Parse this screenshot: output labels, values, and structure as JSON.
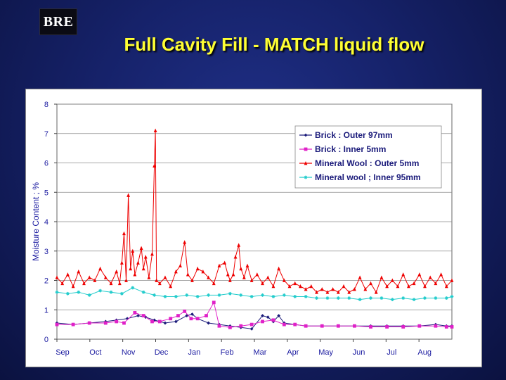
{
  "logo": {
    "text": "BRE"
  },
  "slide_title": "Full Cavity Fill - MATCH liquid flow",
  "chart_data": {
    "type": "line",
    "title": "",
    "xlabel": "",
    "ylabel": "Moisture Content ; %",
    "ylim": [
      0,
      8
    ],
    "yticks": [
      0,
      1,
      2,
      3,
      4,
      5,
      6,
      7,
      8
    ],
    "months": [
      "Sep",
      "Oct",
      "Nov",
      "Dec",
      "Jan",
      "Feb",
      "Mar",
      "Apr",
      "May",
      "Jun",
      "Jul",
      "Aug"
    ],
    "x_range_days": [
      0,
      365
    ],
    "grid": {
      "horizontal": true,
      "vertical": false
    },
    "legend": {
      "position": "top-right"
    },
    "series": [
      {
        "name": "Brick : Outer 97mm",
        "color": "#1a1a7a",
        "marker": "diamond",
        "points": [
          [
            0,
            0.55
          ],
          [
            15,
            0.5
          ],
          [
            30,
            0.55
          ],
          [
            45,
            0.6
          ],
          [
            55,
            0.65
          ],
          [
            65,
            0.7
          ],
          [
            75,
            0.8
          ],
          [
            82,
            0.75
          ],
          [
            90,
            0.65
          ],
          [
            100,
            0.55
          ],
          [
            110,
            0.6
          ],
          [
            120,
            0.8
          ],
          [
            125,
            0.85
          ],
          [
            130,
            0.7
          ],
          [
            140,
            0.55
          ],
          [
            150,
            0.5
          ],
          [
            160,
            0.45
          ],
          [
            170,
            0.4
          ],
          [
            180,
            0.35
          ],
          [
            190,
            0.8
          ],
          [
            195,
            0.75
          ],
          [
            200,
            0.6
          ],
          [
            205,
            0.8
          ],
          [
            210,
            0.55
          ],
          [
            220,
            0.5
          ],
          [
            230,
            0.45
          ],
          [
            245,
            0.45
          ],
          [
            260,
            0.45
          ],
          [
            275,
            0.45
          ],
          [
            290,
            0.45
          ],
          [
            305,
            0.45
          ],
          [
            320,
            0.45
          ],
          [
            335,
            0.45
          ],
          [
            350,
            0.5
          ],
          [
            360,
            0.45
          ],
          [
            365,
            0.45
          ]
        ]
      },
      {
        "name": "Brick : Inner 5mm",
        "color": "#e020c8",
        "marker": "square",
        "points": [
          [
            0,
            0.5
          ],
          [
            15,
            0.5
          ],
          [
            30,
            0.55
          ],
          [
            45,
            0.55
          ],
          [
            55,
            0.6
          ],
          [
            62,
            0.55
          ],
          [
            72,
            0.9
          ],
          [
            80,
            0.8
          ],
          [
            88,
            0.6
          ],
          [
            95,
            0.6
          ],
          [
            105,
            0.7
          ],
          [
            112,
            0.8
          ],
          [
            118,
            0.95
          ],
          [
            124,
            0.7
          ],
          [
            130,
            0.7
          ],
          [
            138,
            0.8
          ],
          [
            145,
            1.25
          ],
          [
            150,
            0.45
          ],
          [
            160,
            0.4
          ],
          [
            170,
            0.45
          ],
          [
            180,
            0.5
          ],
          [
            190,
            0.6
          ],
          [
            200,
            0.65
          ],
          [
            210,
            0.5
          ],
          [
            220,
            0.5
          ],
          [
            230,
            0.45
          ],
          [
            245,
            0.45
          ],
          [
            260,
            0.45
          ],
          [
            275,
            0.45
          ],
          [
            290,
            0.42
          ],
          [
            305,
            0.42
          ],
          [
            320,
            0.42
          ],
          [
            335,
            0.45
          ],
          [
            350,
            0.45
          ],
          [
            360,
            0.42
          ],
          [
            365,
            0.42
          ]
        ]
      },
      {
        "name": "Mineral Wool : Outer 5mm",
        "color": "#ee0000",
        "marker": "triangle",
        "points": [
          [
            0,
            2.1
          ],
          [
            5,
            1.9
          ],
          [
            10,
            2.2
          ],
          [
            15,
            1.8
          ],
          [
            20,
            2.3
          ],
          [
            25,
            1.9
          ],
          [
            30,
            2.1
          ],
          [
            35,
            2.0
          ],
          [
            40,
            2.4
          ],
          [
            45,
            2.1
          ],
          [
            50,
            1.9
          ],
          [
            55,
            2.3
          ],
          [
            58,
            1.9
          ],
          [
            60,
            2.6
          ],
          [
            62,
            3.6
          ],
          [
            64,
            2.0
          ],
          [
            66,
            4.9
          ],
          [
            68,
            2.4
          ],
          [
            70,
            3.0
          ],
          [
            72,
            2.2
          ],
          [
            75,
            2.6
          ],
          [
            78,
            3.1
          ],
          [
            80,
            2.4
          ],
          [
            82,
            2.8
          ],
          [
            85,
            2.1
          ],
          [
            88,
            2.9
          ],
          [
            90,
            5.9
          ],
          [
            91,
            7.1
          ],
          [
            92,
            2.0
          ],
          [
            95,
            1.9
          ],
          [
            100,
            2.1
          ],
          [
            105,
            1.8
          ],
          [
            110,
            2.3
          ],
          [
            114,
            2.5
          ],
          [
            118,
            3.3
          ],
          [
            121,
            2.2
          ],
          [
            125,
            2.0
          ],
          [
            130,
            2.4
          ],
          [
            135,
            2.3
          ],
          [
            140,
            2.1
          ],
          [
            145,
            1.9
          ],
          [
            150,
            2.5
          ],
          [
            155,
            2.6
          ],
          [
            158,
            2.2
          ],
          [
            160,
            2.0
          ],
          [
            163,
            2.2
          ],
          [
            165,
            2.8
          ],
          [
            168,
            3.2
          ],
          [
            170,
            2.4
          ],
          [
            173,
            2.1
          ],
          [
            176,
            2.5
          ],
          [
            180,
            2.0
          ],
          [
            185,
            2.2
          ],
          [
            190,
            1.9
          ],
          [
            195,
            2.1
          ],
          [
            200,
            1.8
          ],
          [
            205,
            2.4
          ],
          [
            210,
            2.0
          ],
          [
            215,
            1.8
          ],
          [
            220,
            1.9
          ],
          [
            225,
            1.8
          ],
          [
            230,
            1.7
          ],
          [
            235,
            1.8
          ],
          [
            240,
            1.6
          ],
          [
            245,
            1.7
          ],
          [
            250,
            1.6
          ],
          [
            255,
            1.7
          ],
          [
            260,
            1.6
          ],
          [
            265,
            1.8
          ],
          [
            270,
            1.6
          ],
          [
            275,
            1.7
          ],
          [
            280,
            2.1
          ],
          [
            285,
            1.7
          ],
          [
            290,
            1.9
          ],
          [
            295,
            1.6
          ],
          [
            300,
            2.1
          ],
          [
            305,
            1.8
          ],
          [
            310,
            2.0
          ],
          [
            315,
            1.8
          ],
          [
            320,
            2.2
          ],
          [
            325,
            1.8
          ],
          [
            330,
            1.9
          ],
          [
            335,
            2.2
          ],
          [
            340,
            1.8
          ],
          [
            345,
            2.1
          ],
          [
            350,
            1.9
          ],
          [
            355,
            2.2
          ],
          [
            360,
            1.8
          ],
          [
            365,
            2.0
          ]
        ]
      },
      {
        "name": "Mineral wool ; Inner 95mm",
        "color": "#22cccc",
        "marker": "star",
        "points": [
          [
            0,
            1.6
          ],
          [
            10,
            1.55
          ],
          [
            20,
            1.6
          ],
          [
            30,
            1.5
          ],
          [
            40,
            1.65
          ],
          [
            50,
            1.6
          ],
          [
            60,
            1.55
          ],
          [
            70,
            1.75
          ],
          [
            80,
            1.6
          ],
          [
            90,
            1.5
          ],
          [
            100,
            1.45
          ],
          [
            110,
            1.45
          ],
          [
            120,
            1.5
          ],
          [
            130,
            1.45
          ],
          [
            140,
            1.5
          ],
          [
            150,
            1.5
          ],
          [
            160,
            1.55
          ],
          [
            170,
            1.5
          ],
          [
            180,
            1.45
          ],
          [
            190,
            1.5
          ],
          [
            200,
            1.45
          ],
          [
            210,
            1.5
          ],
          [
            220,
            1.45
          ],
          [
            230,
            1.45
          ],
          [
            240,
            1.4
          ],
          [
            250,
            1.4
          ],
          [
            260,
            1.4
          ],
          [
            270,
            1.4
          ],
          [
            280,
            1.35
          ],
          [
            290,
            1.4
          ],
          [
            300,
            1.4
          ],
          [
            310,
            1.35
          ],
          [
            320,
            1.4
          ],
          [
            330,
            1.35
          ],
          [
            340,
            1.4
          ],
          [
            350,
            1.4
          ],
          [
            360,
            1.4
          ],
          [
            365,
            1.45
          ]
        ]
      }
    ]
  }
}
